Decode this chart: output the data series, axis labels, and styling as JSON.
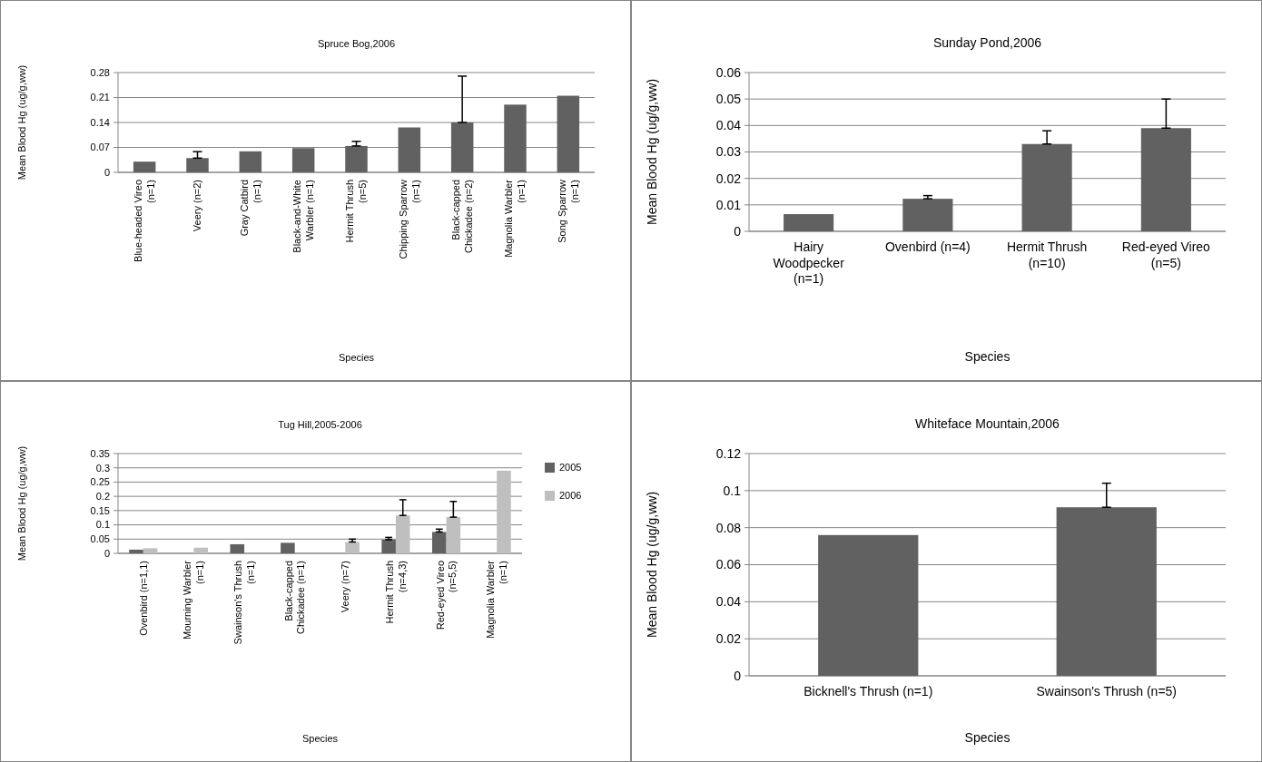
{
  "chart_data": [
    {
      "type": "bar",
      "title": "Spruce Bog,2006",
      "xlabel": "Species",
      "ylabel": "Mean Blood Hg (ug/g,ww)",
      "categories": [
        "Blue-headed Vireo (n=1)",
        "Veery (n=2)",
        "Gray Catbird (n=1)",
        "Black-and-White Warbler (n=1)",
        "Hermit Thrush (n=5)",
        "Chipping Sparrow (n=1)",
        "Black-capped Chickadee (n=2)",
        "Magnolia Warbler (n=1)",
        "Song Sparrow (n=1)"
      ],
      "series": [
        {
          "color": "#616161",
          "values": [
            0.03,
            0.04,
            0.059,
            0.068,
            0.074,
            0.126,
            0.14,
            0.19,
            0.215
          ],
          "errors": [
            null,
            [
              0.04,
              0.058
            ],
            null,
            null,
            [
              0.074,
              0.087
            ],
            null,
            [
              0.14,
              0.27
            ],
            null,
            null
          ]
        }
      ],
      "ylim": [
        0,
        0.28
      ],
      "yticks": [
        0,
        0.07,
        0.14,
        0.21,
        0.28
      ],
      "grid": "y"
    },
    {
      "type": "bar",
      "title": "Sunday Pond,2006",
      "xlabel": "Species",
      "ylabel": "Mean Blood Hg (ug/g,ww)",
      "categories": [
        "Hairy Woodpecker (n=1)",
        "Ovenbird (n=4)",
        "Hermit Thrush (n=10)",
        "Red-eyed Vireo (n=5)"
      ],
      "series": [
        {
          "color": "#616161",
          "values": [
            0.0065,
            0.0123,
            0.033,
            0.039
          ],
          "errors": [
            null,
            [
              0.0123,
              0.0135
            ],
            [
              0.033,
              0.038
            ],
            [
              0.039,
              0.05
            ]
          ]
        }
      ],
      "ylim": [
        0,
        0.06
      ],
      "yticks": [
        0,
        0.01,
        0.02,
        0.03,
        0.04,
        0.05,
        0.06
      ],
      "grid": "y"
    },
    {
      "type": "bar",
      "title": "Tug Hill,2005-2006",
      "xlabel": "Species",
      "ylabel": "Mean Blood Hg (ug/g,ww)",
      "categories": [
        "Ovenbird (n=1,1)",
        "Mourning Warbler (n=1)",
        "Swainson's Thrush (n=1)",
        "Black-capped Chickadee (n=1)",
        "Veery (n=7)",
        "Hermit Thrush (n=4,3)",
        "Red-eyed Vireo (n=5,5)",
        "Magnolia Warbler (n=1)"
      ],
      "series": [
        {
          "name": "2005",
          "color": "#616161",
          "values": [
            0.013,
            null,
            0.032,
            0.037,
            null,
            0.048,
            0.075,
            null
          ],
          "errors": [
            null,
            null,
            null,
            null,
            null,
            [
              0.048,
              0.056
            ],
            [
              0.075,
              0.085
            ],
            null
          ]
        },
        {
          "name": "2006",
          "color": "#bfbfbf",
          "values": [
            0.018,
            0.02,
            null,
            null,
            0.04,
            0.133,
            0.127,
            0.29
          ],
          "errors": [
            null,
            null,
            null,
            null,
            [
              0.04,
              0.05
            ],
            [
              0.133,
              0.188
            ],
            [
              0.127,
              0.182
            ],
            null
          ]
        }
      ],
      "ylim": [
        0,
        0.35
      ],
      "yticks": [
        0,
        0.05,
        0.1,
        0.15,
        0.2,
        0.25,
        0.3,
        0.35
      ],
      "grid": "y",
      "legend": "right"
    },
    {
      "type": "bar",
      "title": "Whiteface Mountain,2006",
      "xlabel": "Species",
      "ylabel": "Mean Blood Hg (ug/g,ww)",
      "categories": [
        "Bicknell's Thrush (n=1)",
        "Swainson's Thrush (n=5)"
      ],
      "series": [
        {
          "color": "#616161",
          "values": [
            0.076,
            0.091
          ],
          "errors": [
            null,
            [
              0.091,
              0.104
            ]
          ]
        }
      ],
      "ylim": [
        0,
        0.12
      ],
      "yticks": [
        0,
        0.02,
        0.04,
        0.06,
        0.08,
        0.1,
        0.12
      ],
      "grid": "y"
    }
  ]
}
